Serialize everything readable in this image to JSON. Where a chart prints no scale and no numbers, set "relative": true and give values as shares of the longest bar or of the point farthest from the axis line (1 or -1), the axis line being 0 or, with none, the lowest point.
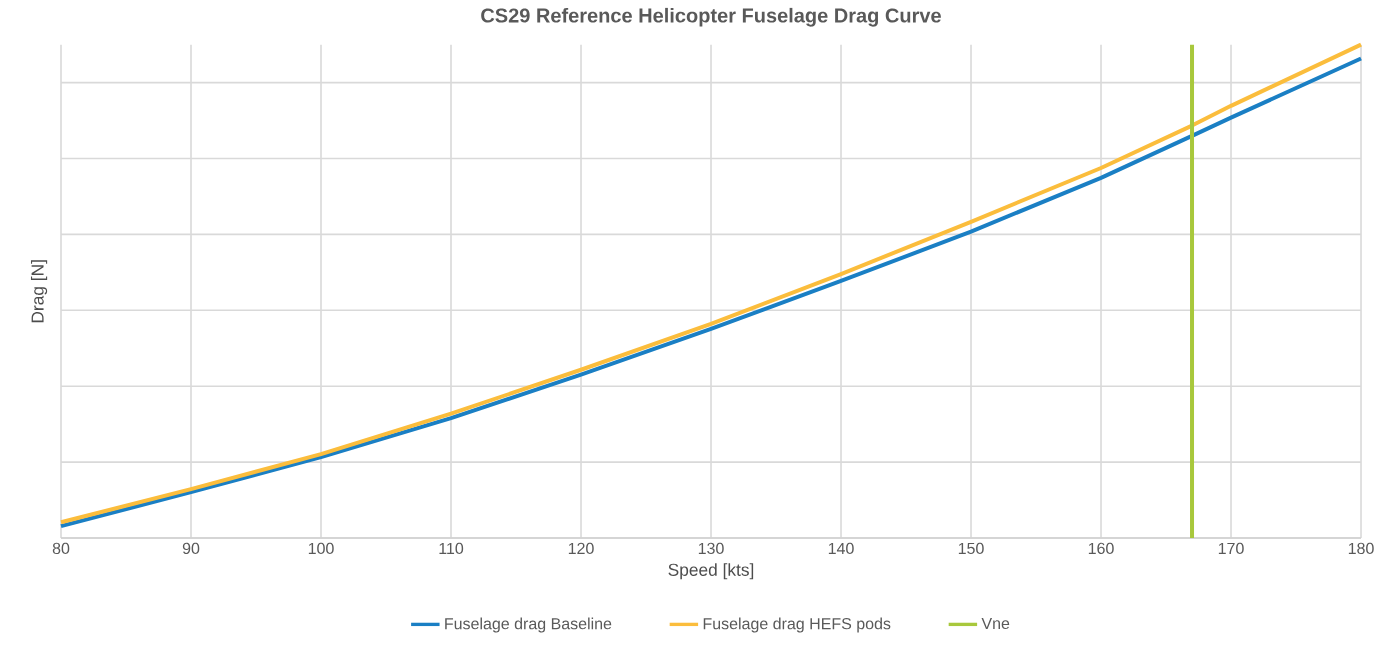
{
  "chart_data": {
    "type": "line",
    "title": "CS29 Reference Helicopter Fuselage Drag Curve",
    "xlabel": "Speed [kts]",
    "ylabel": "Drag [N]",
    "relative": true,
    "x": [
      80,
      90,
      100,
      110,
      120,
      130,
      140,
      150,
      160,
      167,
      170,
      180
    ],
    "series": [
      {
        "name": "Fuselage drag Baseline",
        "color": "#1a7fc4",
        "values": [
          0.024,
          0.093,
          0.164,
          0.243,
          0.331,
          0.424,
          0.521,
          0.621,
          0.73,
          0.815,
          0.852,
          0.972
        ]
      },
      {
        "name": "Fuselage drag HEFS pods",
        "color": "#fbbd3c",
        "values": [
          0.032,
          0.099,
          0.17,
          0.252,
          0.341,
          0.434,
          0.535,
          0.641,
          0.75,
          0.836,
          0.876,
          1.0
        ]
      }
    ],
    "xlim": [
      80,
      180
    ],
    "xticks": [
      80,
      90,
      100,
      110,
      120,
      130,
      140,
      150,
      160,
      170,
      180
    ],
    "ref_lines": [
      {
        "axis": "x",
        "value": 167,
        "label": "Vne",
        "color": "#a8c83c"
      }
    ],
    "grid": true,
    "legend": "bottom",
    "marker": "none",
    "line_style": "solid"
  }
}
